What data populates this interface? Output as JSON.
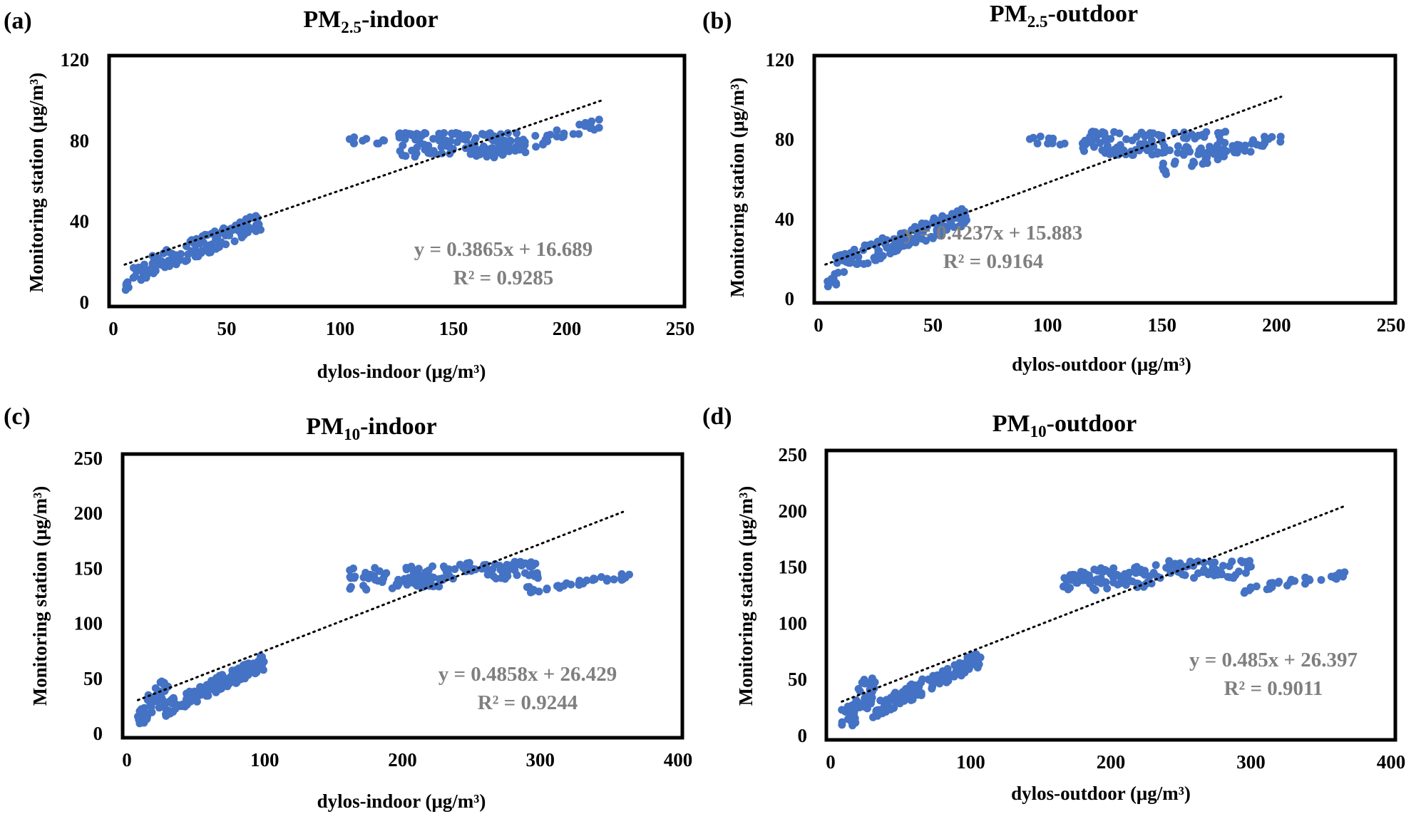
{
  "chart_data": [
    {
      "type": "scatter",
      "panel_label": "(a)",
      "title": "PM2.5-indoor",
      "title_main": "PM",
      "title_sub": "2.5",
      "title_rest": "-indoor",
      "xlabel": "dylos-indoor (μg/m³)",
      "ylabel": "Monitoring station (μg/m³)",
      "xlim": [
        0,
        250
      ],
      "ylim": [
        0,
        120
      ],
      "x_ticks": [
        0,
        50,
        100,
        150,
        200,
        250
      ],
      "y_ticks": [
        0,
        40,
        80,
        120
      ],
      "x_tick_labels": [
        "0",
        "50",
        "100",
        "150",
        "200",
        "250"
      ],
      "y_tick_labels": [
        "0",
        "40",
        "80",
        "120"
      ],
      "trendline": {
        "slope": 0.3865,
        "intercept": 16.689,
        "x_range": [
          5,
          215
        ],
        "style": "dotted"
      },
      "equation": "y = 0.3865x + 16.689",
      "r_squared": "R² = 0.9285",
      "series": [
        {
          "name": "observations",
          "clusters": [
            {
              "x": [
                5,
                7
              ],
              "y_intercept": 8,
              "slope": 0,
              "noise": 2,
              "n": 8
            },
            {
              "x": [
                8,
                66
              ],
              "y_intercept": 14,
              "slope": 0.45,
              "noise": 5,
              "n": 130
            },
            {
              "x": [
                104,
                120
              ],
              "y_intercept": 80,
              "slope": -0.05,
              "noise": 2,
              "n": 10
            },
            {
              "x": [
                125,
                182
              ],
              "y_intercept": 78,
              "slope": 0.0,
              "noise": 6,
              "n": 110
            },
            {
              "x": [
                160,
                215
              ],
              "y_intercept": 72,
              "slope": 0.3,
              "noise": 3,
              "n": 50
            }
          ]
        }
      ]
    },
    {
      "type": "scatter",
      "panel_label": "(b)",
      "title": "PM2.5-outdoor",
      "title_main": "PM",
      "title_sub": "2.5",
      "title_rest": "-outdoor",
      "xlabel": "dylos-outdoor (μg/m³)",
      "ylabel": "Monitoring station (μg/m³)",
      "xlim": [
        0,
        250
      ],
      "ylim": [
        0,
        120
      ],
      "x_ticks": [
        0,
        50,
        100,
        150,
        200,
        250
      ],
      "y_ticks": [
        0,
        40,
        80,
        120
      ],
      "x_tick_labels": [
        "0",
        "50",
        "100",
        "150",
        "200",
        "250"
      ],
      "y_tick_labels": [
        "0",
        "40",
        "80",
        "120"
      ],
      "trendline": {
        "slope": 0.4237,
        "intercept": 15.883,
        "x_range": [
          3,
          202
        ],
        "style": "dotted"
      },
      "equation": "y = 0.4237x + 15.883",
      "r_squared": "R² = 0.9164",
      "series": [
        {
          "name": "observations",
          "clusters": [
            {
              "x": [
                3,
                8
              ],
              "y_intercept": 8,
              "slope": 0,
              "noise": 2,
              "n": 10
            },
            {
              "x": [
                7,
                66
              ],
              "y_intercept": 16,
              "slope": 0.45,
              "noise": 5,
              "n": 140
            },
            {
              "x": [
                92,
                112
              ],
              "y_intercept": 80,
              "slope": -0.05,
              "noise": 2,
              "n": 12
            },
            {
              "x": [
                115,
                178
              ],
              "y_intercept": 78,
              "slope": 0.0,
              "noise": 6,
              "n": 120
            },
            {
              "x": [
                150,
                202
              ],
              "y_intercept": 65,
              "slope": 0.3,
              "noise": 3,
              "n": 50
            }
          ]
        }
      ]
    },
    {
      "type": "scatter",
      "panel_label": "(c)",
      "title": "PM10-indoor",
      "title_main": "PM",
      "title_sub": "10",
      "title_rest": "-indoor",
      "xlabel": "dylos-indoor (μg/m³)",
      "ylabel": "Monitoring station (μg/m³)",
      "xlim": [
        0,
        400
      ],
      "ylim": [
        0,
        250
      ],
      "x_ticks": [
        0,
        100,
        200,
        300,
        400
      ],
      "y_ticks": [
        0,
        50,
        100,
        150,
        200,
        250
      ],
      "x_tick_labels": [
        "0",
        "100",
        "200",
        "300",
        "400"
      ],
      "y_tick_labels": [
        "0",
        "50",
        "100",
        "150",
        "200",
        "250"
      ],
      "trendline": {
        "slope": 0.4858,
        "intercept": 26.429,
        "x_range": [
          8,
          360
        ],
        "style": "dotted"
      },
      "equation": "y = 0.4858x + 26.429",
      "r_squared": "R² = 0.9244",
      "series": [
        {
          "name": "observations",
          "clusters": [
            {
              "x": [
                8,
                15
              ],
              "y_intercept": 15,
              "slope": 0.5,
              "noise": 8,
              "n": 25
            },
            {
              "x": [
                15,
                30
              ],
              "y_intercept": 25,
              "slope": 1.0,
              "noise": 14,
              "n": 30
            },
            {
              "x": [
                28,
                100
              ],
              "y_intercept": 22,
              "slope": 0.6,
              "noise": 7,
              "n": 120
            },
            {
              "x": [
                160,
                230
              ],
              "y_intercept": 140,
              "slope": 0.05,
              "noise": 10,
              "n": 80
            },
            {
              "x": [
                230,
                300
              ],
              "y_intercept": 148,
              "slope": 0.0,
              "noise": 8,
              "n": 60
            },
            {
              "x": [
                290,
                365
              ],
              "y_intercept": 130,
              "slope": 0.18,
              "noise": 3,
              "n": 35
            }
          ]
        }
      ]
    },
    {
      "type": "scatter",
      "panel_label": "(d)",
      "title": "PM10-outdoor",
      "title_main": "PM",
      "title_sub": "10",
      "title_rest": "-outdoor",
      "xlabel": "dylos-outdoor (μg/m³)",
      "ylabel": "Monitoring station (μg/m³)",
      "xlim": [
        0,
        400
      ],
      "ylim": [
        0,
        250
      ],
      "x_ticks": [
        0,
        100,
        200,
        300,
        400
      ],
      "y_ticks": [
        0,
        50,
        100,
        150,
        200,
        250
      ],
      "x_tick_labels": [
        "0",
        "100",
        "200",
        "300",
        "400"
      ],
      "y_tick_labels": [
        "0",
        "50",
        "100",
        "150",
        "200",
        "250"
      ],
      "trendline": {
        "slope": 0.485,
        "intercept": 26.397,
        "x_range": [
          8,
          368
        ],
        "style": "dotted"
      },
      "equation": "y = 0.485x + 26.397",
      "r_squared": "R² = 0.9011",
      "series": [
        {
          "name": "observations",
          "clusters": [
            {
              "x": [
                8,
                18
              ],
              "y_intercept": 15,
              "slope": 0.5,
              "noise": 10,
              "n": 25
            },
            {
              "x": [
                18,
                32
              ],
              "y_intercept": 30,
              "slope": 1.0,
              "noise": 14,
              "n": 30
            },
            {
              "x": [
                30,
                108
              ],
              "y_intercept": 22,
              "slope": 0.6,
              "noise": 7,
              "n": 120
            },
            {
              "x": [
                165,
                230
              ],
              "y_intercept": 138,
              "slope": 0.05,
              "noise": 10,
              "n": 80
            },
            {
              "x": [
                230,
                300
              ],
              "y_intercept": 148,
              "slope": 0.0,
              "noise": 8,
              "n": 60
            },
            {
              "x": [
                295,
                370
              ],
              "y_intercept": 130,
              "slope": 0.18,
              "noise": 3,
              "n": 35
            }
          ]
        }
      ]
    }
  ]
}
